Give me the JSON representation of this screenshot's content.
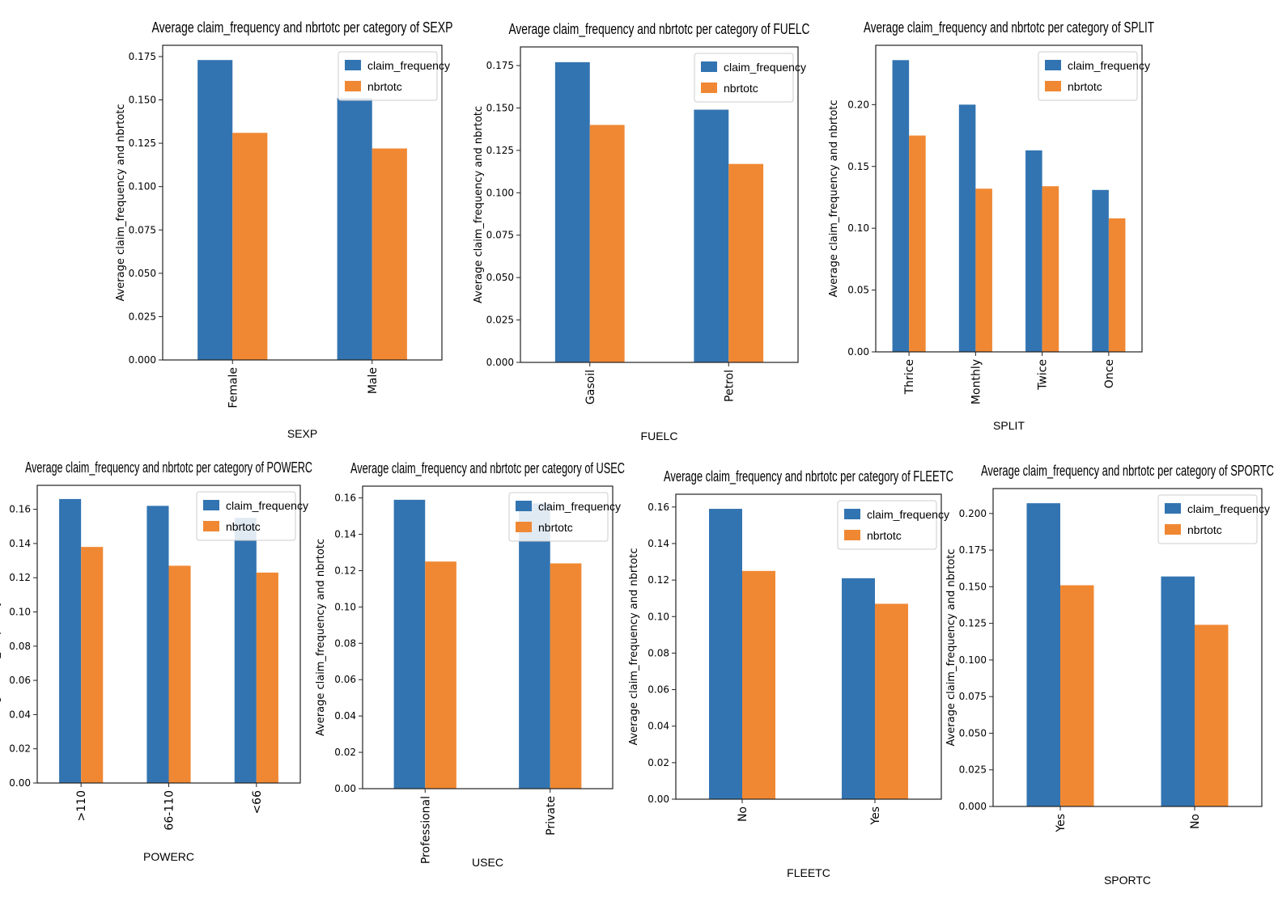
{
  "colors": {
    "claim_frequency": "#3274b1",
    "nbrtotc": "#f08833",
    "axes": "#222222",
    "legend_border": "#cccccc"
  },
  "chart_data": [
    {
      "type": "bar",
      "title": "Average claim_frequency and nbrtotc per category of SEXP",
      "xlabel": "SEXP",
      "ylabel": "Average claim_frequency and nbrtotc",
      "categories": [
        "Female",
        "Male"
      ],
      "series": [
        {
          "name": "claim_frequency",
          "values": [
            0.173,
            0.151
          ]
        },
        {
          "name": "nbrtotc",
          "values": [
            0.131,
            0.122
          ]
        }
      ],
      "ylim": [
        0,
        0.1815
      ],
      "yticks": [
        0,
        0.025,
        0.05,
        0.075,
        0.1,
        0.125,
        0.15,
        0.175
      ],
      "yticklabels": [
        "0.000",
        "0.025",
        "0.050",
        "0.075",
        "0.100",
        "0.125",
        "0.150",
        "0.175"
      ],
      "legend": "top-right",
      "grid": false
    },
    {
      "type": "bar",
      "title": "Average claim_frequency and nbrtotc per category of FUELC",
      "xlabel": "FUELC",
      "ylabel": "Average claim_frequency and nbrtotc",
      "categories": [
        "Gasoil",
        "Petrol"
      ],
      "series": [
        {
          "name": "claim_frequency",
          "values": [
            0.177,
            0.149
          ]
        },
        {
          "name": "nbrtotc",
          "values": [
            0.14,
            0.117
          ]
        }
      ],
      "ylim": [
        0,
        0.186
      ],
      "yticks": [
        0,
        0.025,
        0.05,
        0.075,
        0.1,
        0.125,
        0.15,
        0.175
      ],
      "yticklabels": [
        "0.000",
        "0.025",
        "0.050",
        "0.075",
        "0.100",
        "0.125",
        "0.150",
        "0.175"
      ],
      "legend": "top-right",
      "grid": false
    },
    {
      "type": "bar",
      "title": "Average claim_frequency and nbrtotc per category of SPLIT",
      "xlabel": "SPLIT",
      "ylabel": "Average claim_frequency and nbrtotc",
      "categories": [
        "Thrice",
        "Monthly",
        "Twice",
        "Once"
      ],
      "series": [
        {
          "name": "claim_frequency",
          "values": [
            0.236,
            0.2,
            0.163,
            0.131
          ]
        },
        {
          "name": "nbrtotc",
          "values": [
            0.175,
            0.132,
            0.134,
            0.108
          ]
        }
      ],
      "ylim": [
        0,
        0.248
      ],
      "yticks": [
        0,
        0.05,
        0.1,
        0.15,
        0.2
      ],
      "yticklabels": [
        "0.00",
        "0.05",
        "0.10",
        "0.15",
        "0.20"
      ],
      "legend": "top-right",
      "grid": false
    },
    {
      "type": "bar",
      "title": "Average claim_frequency and nbrtotc per category of POWERC",
      "xlabel": "POWERC",
      "ylabel": "Average claim_frequency and nbrtotc",
      "categories": [
        ">110",
        "66-110",
        "<66"
      ],
      "series": [
        {
          "name": "claim_frequency",
          "values": [
            0.166,
            0.162,
            0.155
          ]
        },
        {
          "name": "nbrtotc",
          "values": [
            0.138,
            0.127,
            0.123
          ]
        }
      ],
      "ylim": [
        0,
        0.174
      ],
      "yticks": [
        0,
        0.02,
        0.04,
        0.06,
        0.08,
        0.1,
        0.12,
        0.14,
        0.16
      ],
      "yticklabels": [
        "0.00",
        "0.02",
        "0.04",
        "0.06",
        "0.08",
        "0.10",
        "0.12",
        "0.14",
        "0.16"
      ],
      "legend": "top-right",
      "grid": false
    },
    {
      "type": "bar",
      "title": "Average claim_frequency and nbrtotc per category of USEC",
      "xlabel": "USEC",
      "ylabel": "Average claim_frequency and nbrtotc",
      "categories": [
        "Professional",
        "Private"
      ],
      "series": [
        {
          "name": "claim_frequency",
          "values": [
            0.159,
            0.157
          ]
        },
        {
          "name": "nbrtotc",
          "values": [
            0.125,
            0.124
          ]
        }
      ],
      "ylim": [
        0,
        0.1665
      ],
      "yticks": [
        0,
        0.02,
        0.04,
        0.06,
        0.08,
        0.1,
        0.12,
        0.14,
        0.16
      ],
      "yticklabels": [
        "0.00",
        "0.02",
        "0.04",
        "0.06",
        "0.08",
        "0.10",
        "0.12",
        "0.14",
        "0.16"
      ],
      "legend": "top-right",
      "grid": false
    },
    {
      "type": "bar",
      "title": "Average claim_frequency and nbrtotc per category of FLEETC",
      "xlabel": "FLEETC",
      "ylabel": "Average claim_frequency and nbrtotc",
      "categories": [
        "No",
        "Yes"
      ],
      "series": [
        {
          "name": "claim_frequency",
          "values": [
            0.159,
            0.121
          ]
        },
        {
          "name": "nbrtotc",
          "values": [
            0.125,
            0.107
          ]
        }
      ],
      "ylim": [
        0,
        0.167
      ],
      "yticks": [
        0,
        0.02,
        0.04,
        0.06,
        0.08,
        0.1,
        0.12,
        0.14,
        0.16
      ],
      "yticklabels": [
        "0.00",
        "0.02",
        "0.04",
        "0.06",
        "0.08",
        "0.10",
        "0.12",
        "0.14",
        "0.16"
      ],
      "legend": "top-right",
      "grid": false
    },
    {
      "type": "bar",
      "title": "Average claim_frequency and nbrtotc per category of SPORTC",
      "xlabel": "SPORTC",
      "ylabel": "Average claim_frequency and nbrtotc",
      "categories": [
        "Yes",
        "No"
      ],
      "series": [
        {
          "name": "claim_frequency",
          "values": [
            0.207,
            0.157
          ]
        },
        {
          "name": "nbrtotc",
          "values": [
            0.151,
            0.124
          ]
        }
      ],
      "ylim": [
        0,
        0.217
      ],
      "yticks": [
        0,
        0.025,
        0.05,
        0.075,
        0.1,
        0.125,
        0.15,
        0.175,
        0.2
      ],
      "yticklabels": [
        "0.000",
        "0.025",
        "0.050",
        "0.075",
        "0.100",
        "0.125",
        "0.150",
        "0.175",
        "0.200"
      ],
      "legend": "top-right",
      "grid": false
    }
  ]
}
